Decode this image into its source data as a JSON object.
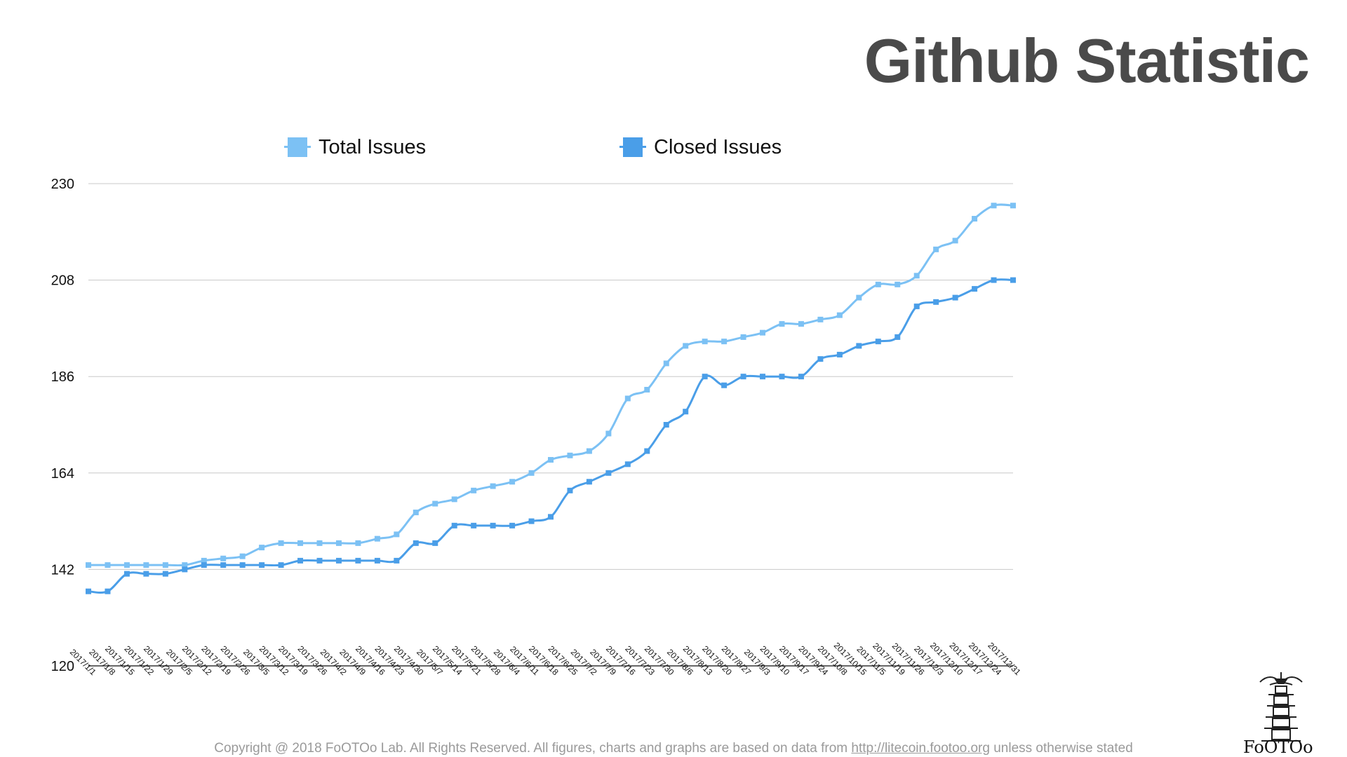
{
  "page": {
    "title": "Github Statistic",
    "footer": {
      "prefix": "Copyright @ 2018 FoOTOo Lab. All Rights Reserved. All figures, charts and graphs are based on data from ",
      "link": "http://litecoin.footoo.org",
      "suffix": " unless otherwise stated"
    },
    "logo_text": "FoOTOo"
  },
  "chart_data": {
    "type": "line",
    "title": "",
    "xlabel": "",
    "ylabel": "",
    "ylim": [
      120,
      230
    ],
    "yticks": [
      120,
      142,
      164,
      186,
      208,
      230
    ],
    "grid": true,
    "legend_position": "top",
    "categories": [
      "2017/1/1",
      "2017/1/8",
      "2017/1/15",
      "2017/1/22",
      "2017/1/29",
      "2017/2/5",
      "2017/2/12",
      "2017/2/19",
      "2017/2/26",
      "2017/3/5",
      "2017/3/12",
      "2017/3/19",
      "2017/3/26",
      "2017/4/2",
      "2017/4/9",
      "2017/4/16",
      "2017/4/23",
      "2017/4/30",
      "2017/5/7",
      "2017/5/14",
      "2017/5/21",
      "2017/5/28",
      "2017/6/4",
      "2017/6/11",
      "2017/6/18",
      "2017/6/25",
      "2017/7/2",
      "2017/7/9",
      "2017/7/16",
      "2017/7/23",
      "2017/7/30",
      "2017/8/6",
      "2017/8/13",
      "2017/8/20",
      "2017/8/27",
      "2017/9/3",
      "2017/9/10",
      "2017/9/17",
      "2017/9/24",
      "2017/10/8",
      "2017/10/15",
      "2017/11/5",
      "2017/11/19",
      "2017/11/26",
      "2017/12/3",
      "2017/12/10",
      "2017/12/17",
      "2017/12/24",
      "2017/12/31"
    ],
    "series": [
      {
        "name": "Total Issues",
        "color": "#7cc1f4",
        "values": [
          143,
          143,
          143,
          143,
          143,
          143,
          144,
          144.5,
          145,
          147,
          148,
          148,
          148,
          148,
          148,
          149,
          150,
          155,
          157,
          158,
          160,
          161,
          162,
          164,
          167,
          168,
          169,
          173,
          181,
          183,
          189,
          193,
          194,
          194,
          195,
          196,
          198,
          198,
          199,
          200,
          204,
          207,
          207,
          209,
          215,
          217,
          222,
          225,
          225
        ]
      },
      {
        "name": "Closed Issues",
        "color": "#4a9ee8",
        "values": [
          137,
          137,
          141,
          141,
          141,
          142,
          143,
          143,
          143,
          143,
          143,
          144,
          144,
          144,
          144,
          144,
          144,
          148,
          148,
          152,
          152,
          152,
          152,
          153,
          154,
          160,
          162,
          164,
          166,
          169,
          175,
          178,
          186,
          184,
          186,
          186,
          186,
          186,
          190,
          191,
          193,
          194,
          195,
          202,
          203,
          204,
          206,
          208,
          208
        ]
      }
    ]
  }
}
